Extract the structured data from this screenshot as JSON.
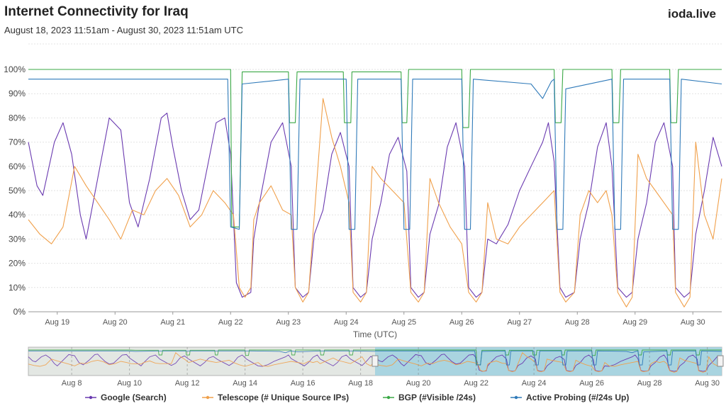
{
  "title": "Internet Connectivity for Iraq",
  "subtitle": "August 18, 2023 11:51am - August 30, 2023 11:51am UTC",
  "brand": "ioda.live",
  "chart_data": {
    "type": "line",
    "title": "Internet Connectivity for Iraq",
    "xlabel": "Time (UTC)",
    "ylabel": "",
    "ylim": [
      0,
      100
    ],
    "y_ticks": [
      "0%",
      "10%",
      "20%",
      "30%",
      "40%",
      "50%",
      "60%",
      "70%",
      "80%",
      "90%",
      "100%"
    ],
    "x_ticks": [
      "Aug 19",
      "Aug 20",
      "Aug 21",
      "Aug 22",
      "Aug 23",
      "Aug 24",
      "Aug 25",
      "Aug 26",
      "Aug 27",
      "Aug 28",
      "Aug 29",
      "Aug 30"
    ],
    "x_range_days": [
      0,
      12
    ],
    "grid": true,
    "legend_position": "bottom",
    "series": [
      {
        "name": "Google (Search)",
        "color": "#6a3ab0",
        "points": [
          [
            0,
            70
          ],
          [
            0.15,
            52
          ],
          [
            0.25,
            48
          ],
          [
            0.45,
            70
          ],
          [
            0.6,
            78
          ],
          [
            0.75,
            65
          ],
          [
            0.9,
            40
          ],
          [
            1.0,
            30
          ],
          [
            1.2,
            55
          ],
          [
            1.4,
            80
          ],
          [
            1.6,
            75
          ],
          [
            1.75,
            45
          ],
          [
            1.9,
            35
          ],
          [
            2.1,
            55
          ],
          [
            2.3,
            80
          ],
          [
            2.4,
            82
          ],
          [
            2.5,
            68
          ],
          [
            2.65,
            50
          ],
          [
            2.8,
            38
          ],
          [
            2.95,
            42
          ],
          [
            3.1,
            60
          ],
          [
            3.25,
            78
          ],
          [
            3.4,
            80
          ],
          [
            3.5,
            65
          ],
          [
            3.6,
            12
          ],
          [
            3.7,
            6
          ],
          [
            3.85,
            8
          ],
          [
            3.9,
            30
          ],
          [
            4.0,
            45
          ],
          [
            4.2,
            70
          ],
          [
            4.4,
            78
          ],
          [
            4.55,
            60
          ],
          [
            4.62,
            10
          ],
          [
            4.75,
            6
          ],
          [
            4.85,
            8
          ],
          [
            4.95,
            32
          ],
          [
            5.1,
            42
          ],
          [
            5.25,
            65
          ],
          [
            5.4,
            74
          ],
          [
            5.55,
            60
          ],
          [
            5.62,
            10
          ],
          [
            5.75,
            6
          ],
          [
            5.85,
            8
          ],
          [
            5.95,
            30
          ],
          [
            6.1,
            45
          ],
          [
            6.25,
            65
          ],
          [
            6.4,
            72
          ],
          [
            6.55,
            58
          ],
          [
            6.62,
            10
          ],
          [
            6.75,
            6
          ],
          [
            6.85,
            8
          ],
          [
            6.95,
            32
          ],
          [
            7.1,
            44
          ],
          [
            7.25,
            68
          ],
          [
            7.4,
            78
          ],
          [
            7.55,
            60
          ],
          [
            7.62,
            10
          ],
          [
            7.75,
            6
          ],
          [
            7.85,
            8
          ],
          [
            7.95,
            30
          ],
          [
            8.1,
            28
          ],
          [
            8.3,
            36
          ],
          [
            8.5,
            50
          ],
          [
            8.7,
            60
          ],
          [
            8.9,
            70
          ],
          [
            9.0,
            78
          ],
          [
            9.1,
            62
          ],
          [
            9.2,
            10
          ],
          [
            9.3,
            6
          ],
          [
            9.45,
            8
          ],
          [
            9.55,
            30
          ],
          [
            9.7,
            45
          ],
          [
            9.85,
            68
          ],
          [
            10.0,
            78
          ],
          [
            10.1,
            60
          ],
          [
            10.2,
            10
          ],
          [
            10.35,
            6
          ],
          [
            10.45,
            8
          ],
          [
            10.55,
            30
          ],
          [
            10.7,
            45
          ],
          [
            10.85,
            70
          ],
          [
            11.0,
            78
          ],
          [
            11.15,
            60
          ],
          [
            11.2,
            10
          ],
          [
            11.35,
            6
          ],
          [
            11.45,
            8
          ],
          [
            11.55,
            32
          ],
          [
            11.7,
            50
          ],
          [
            11.85,
            72
          ],
          [
            12.0,
            60
          ]
        ]
      },
      {
        "name": "Telescope (# Unique Source IPs)",
        "color": "#f0a04b",
        "points": [
          [
            0,
            38
          ],
          [
            0.2,
            32
          ],
          [
            0.4,
            28
          ],
          [
            0.6,
            35
          ],
          [
            0.8,
            60
          ],
          [
            1.0,
            52
          ],
          [
            1.2,
            45
          ],
          [
            1.4,
            38
          ],
          [
            1.6,
            30
          ],
          [
            1.8,
            42
          ],
          [
            2.0,
            40
          ],
          [
            2.2,
            50
          ],
          [
            2.4,
            55
          ],
          [
            2.6,
            48
          ],
          [
            2.8,
            35
          ],
          [
            3.0,
            40
          ],
          [
            3.2,
            50
          ],
          [
            3.4,
            45
          ],
          [
            3.55,
            40
          ],
          [
            3.65,
            10
          ],
          [
            3.75,
            6
          ],
          [
            3.85,
            10
          ],
          [
            3.9,
            38
          ],
          [
            4.0,
            45
          ],
          [
            4.2,
            52
          ],
          [
            4.4,
            42
          ],
          [
            4.55,
            40
          ],
          [
            4.62,
            10
          ],
          [
            4.75,
            4
          ],
          [
            4.85,
            8
          ],
          [
            4.95,
            40
          ],
          [
            5.1,
            88
          ],
          [
            5.25,
            72
          ],
          [
            5.4,
            60
          ],
          [
            5.55,
            45
          ],
          [
            5.62,
            8
          ],
          [
            5.75,
            4
          ],
          [
            5.85,
            8
          ],
          [
            5.95,
            60
          ],
          [
            6.1,
            55
          ],
          [
            6.3,
            50
          ],
          [
            6.5,
            45
          ],
          [
            6.62,
            8
          ],
          [
            6.75,
            4
          ],
          [
            6.85,
            8
          ],
          [
            6.95,
            55
          ],
          [
            7.1,
            45
          ],
          [
            7.3,
            35
          ],
          [
            7.5,
            28
          ],
          [
            7.62,
            8
          ],
          [
            7.75,
            4
          ],
          [
            7.85,
            8
          ],
          [
            7.95,
            45
          ],
          [
            8.1,
            30
          ],
          [
            8.3,
            28
          ],
          [
            8.5,
            35
          ],
          [
            8.7,
            40
          ],
          [
            8.9,
            45
          ],
          [
            9.1,
            50
          ],
          [
            9.2,
            8
          ],
          [
            9.3,
            4
          ],
          [
            9.45,
            8
          ],
          [
            9.55,
            40
          ],
          [
            9.7,
            50
          ],
          [
            9.85,
            45
          ],
          [
            10.0,
            50
          ],
          [
            10.1,
            40
          ],
          [
            10.2,
            8
          ],
          [
            10.35,
            2
          ],
          [
            10.45,
            6
          ],
          [
            10.55,
            65
          ],
          [
            10.7,
            55
          ],
          [
            10.85,
            50
          ],
          [
            11.0,
            45
          ],
          [
            11.15,
            40
          ],
          [
            11.2,
            8
          ],
          [
            11.35,
            2
          ],
          [
            11.45,
            6
          ],
          [
            11.55,
            70
          ],
          [
            11.7,
            40
          ],
          [
            11.85,
            30
          ],
          [
            12.0,
            55
          ]
        ]
      },
      {
        "name": "BGP (#Visible /24s)",
        "color": "#3aa845",
        "points": [
          [
            0,
            100
          ],
          [
            3.5,
            100
          ],
          [
            3.52,
            35
          ],
          [
            3.65,
            35
          ],
          [
            3.7,
            99
          ],
          [
            4.5,
            99
          ],
          [
            4.52,
            78
          ],
          [
            4.62,
            78
          ],
          [
            4.65,
            99
          ],
          [
            5.45,
            99
          ],
          [
            5.47,
            78
          ],
          [
            5.58,
            78
          ],
          [
            5.6,
            99
          ],
          [
            6.45,
            99
          ],
          [
            6.47,
            78
          ],
          [
            6.55,
            78
          ],
          [
            6.58,
            100
          ],
          [
            7.5,
            100
          ],
          [
            7.52,
            76
          ],
          [
            7.62,
            76
          ],
          [
            7.65,
            100
          ],
          [
            9.1,
            100
          ],
          [
            9.12,
            78
          ],
          [
            9.22,
            78
          ],
          [
            9.25,
            100
          ],
          [
            10.1,
            100
          ],
          [
            10.12,
            78
          ],
          [
            10.22,
            78
          ],
          [
            10.25,
            100
          ],
          [
            11.1,
            100
          ],
          [
            11.12,
            78
          ],
          [
            11.22,
            78
          ],
          [
            11.25,
            100
          ],
          [
            12.0,
            100
          ]
        ]
      },
      {
        "name": "Active Probing (#/24s Up)",
        "color": "#2f7ab9",
        "points": [
          [
            0,
            96
          ],
          [
            1,
            96
          ],
          [
            2,
            96
          ],
          [
            3.0,
            96
          ],
          [
            3.45,
            96
          ],
          [
            3.5,
            35
          ],
          [
            3.65,
            34
          ],
          [
            3.7,
            94
          ],
          [
            4.5,
            96
          ],
          [
            4.55,
            34
          ],
          [
            4.65,
            34
          ],
          [
            4.7,
            96
          ],
          [
            5.5,
            96
          ],
          [
            5.55,
            34
          ],
          [
            5.65,
            34
          ],
          [
            5.7,
            96
          ],
          [
            6.45,
            96
          ],
          [
            6.5,
            34
          ],
          [
            6.6,
            34
          ],
          [
            6.65,
            96
          ],
          [
            7.5,
            96
          ],
          [
            7.55,
            34
          ],
          [
            7.65,
            34
          ],
          [
            7.7,
            96
          ],
          [
            8.7,
            94
          ],
          [
            8.9,
            88
          ],
          [
            9.05,
            95
          ],
          [
            9.1,
            96
          ],
          [
            9.15,
            34
          ],
          [
            9.25,
            34
          ],
          [
            9.3,
            92
          ],
          [
            10.1,
            96
          ],
          [
            10.15,
            34
          ],
          [
            10.25,
            34
          ],
          [
            10.3,
            96
          ],
          [
            11.1,
            96
          ],
          [
            11.15,
            34
          ],
          [
            11.25,
            34
          ],
          [
            11.3,
            96
          ],
          [
            12.0,
            94
          ]
        ]
      }
    ],
    "navigator": {
      "x_ticks": [
        "Aug 8",
        "Aug 10",
        "Aug 12",
        "Aug 14",
        "Aug 16",
        "Aug 18",
        "Aug 20",
        "Aug 22",
        "Aug 24",
        "Aug 26",
        "Aug 28",
        "Aug 30"
      ]
    }
  }
}
